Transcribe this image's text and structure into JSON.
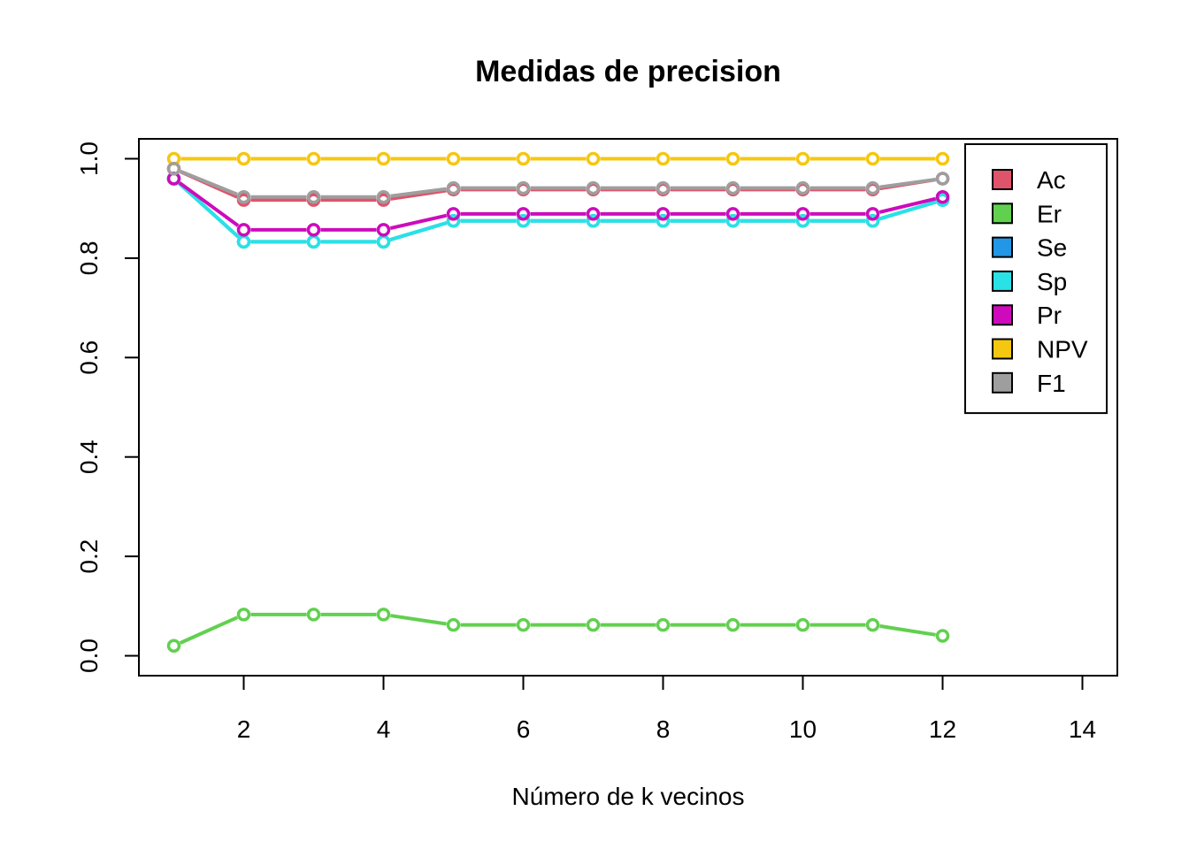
{
  "chart_data": {
    "type": "line",
    "title": "Medidas de precision",
    "xlabel": "Número de k vecinos",
    "ylabel": "",
    "xlim": [
      0.5,
      14.5
    ],
    "ylim": [
      -0.04,
      1.04
    ],
    "xticks": [
      2,
      4,
      6,
      8,
      10,
      12,
      14
    ],
    "yticks": [
      0.0,
      0.2,
      0.4,
      0.6,
      0.8,
      1.0
    ],
    "xtick_labels": [
      "2",
      "4",
      "6",
      "8",
      "10",
      "12",
      "14"
    ],
    "ytick_labels": [
      "0.0",
      "0.2",
      "0.4",
      "0.6",
      "0.8",
      "1.0"
    ],
    "grid": false,
    "legend_position": "top-right",
    "x": [
      1,
      2,
      3,
      4,
      5,
      6,
      7,
      8,
      9,
      10,
      11,
      12
    ],
    "series": [
      {
        "name": "Ac",
        "color": "#DF536B",
        "values": [
          0.98,
          0.917,
          0.917,
          0.917,
          0.938,
          0.938,
          0.938,
          0.938,
          0.938,
          0.938,
          0.938,
          0.96
        ]
      },
      {
        "name": "Er",
        "color": "#61D04F",
        "values": [
          0.02,
          0.083,
          0.083,
          0.083,
          0.062,
          0.062,
          0.062,
          0.062,
          0.062,
          0.062,
          0.062,
          0.04
        ]
      },
      {
        "name": "Se",
        "color": "#2297E6",
        "values": [
          0.96,
          0.833,
          0.833,
          0.833,
          0.875,
          0.875,
          0.875,
          0.875,
          0.875,
          0.875,
          0.875,
          0.917
        ]
      },
      {
        "name": "Sp",
        "color": "#28E2E5",
        "values": [
          0.96,
          0.833,
          0.833,
          0.833,
          0.875,
          0.875,
          0.875,
          0.875,
          0.875,
          0.875,
          0.875,
          0.917
        ]
      },
      {
        "name": "Pr",
        "color": "#CD0BBC",
        "values": [
          0.96,
          0.857,
          0.857,
          0.857,
          0.889,
          0.889,
          0.889,
          0.889,
          0.889,
          0.889,
          0.889,
          0.923
        ]
      },
      {
        "name": "NPV",
        "color": "#F5C710",
        "values": [
          1.0,
          1.0,
          1.0,
          1.0,
          1.0,
          1.0,
          1.0,
          1.0,
          1.0,
          1.0,
          1.0,
          1.0
        ]
      },
      {
        "name": "F1",
        "color": "#9E9E9E",
        "values": [
          0.98,
          0.923,
          0.923,
          0.923,
          0.941,
          0.941,
          0.941,
          0.941,
          0.941,
          0.941,
          0.941,
          0.96
        ]
      }
    ]
  }
}
